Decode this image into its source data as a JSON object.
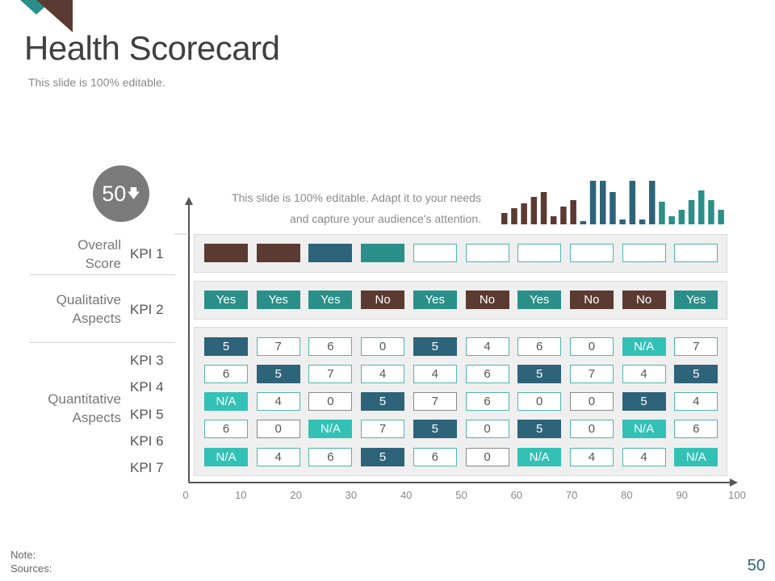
{
  "slide": {
    "title": "Health Scorecard",
    "subtitle": "This slide is 100% editable.",
    "page_number": "50",
    "note_label": "Note:",
    "sources_label": "Sources:"
  },
  "score": {
    "value": "50",
    "arrow_icon": "down-arrow-icon"
  },
  "description": {
    "line1": "This slide is 100% editable. Adapt it to your needs",
    "line2": "and capture your audience's attention."
  },
  "groups": {
    "overall_line1": "Overall",
    "overall_line2": "Score",
    "qualitative_line1": "Qualitative",
    "qualitative_line2": "Aspects",
    "quantitative_line1": "Quantitative",
    "quantitative_line2": "Aspects"
  },
  "kpis": [
    "KPI 1",
    "KPI 2",
    "KPI 3",
    "KPI 4",
    "KPI 5",
    "KPI 6",
    "KPI 7"
  ],
  "axis_ticks": [
    "0",
    "10",
    "20",
    "30",
    "40",
    "50",
    "60",
    "70",
    "80",
    "90",
    "100"
  ],
  "colors": {
    "navy": "#2e6479",
    "teal": "#33c1b6",
    "dark_teal": "#2a8f88",
    "brown": "#5b3a32",
    "accent_title": "#404040"
  },
  "kpi1_row": [
    {
      "style": "brown",
      "text": ""
    },
    {
      "style": "brown",
      "text": ""
    },
    {
      "style": "navy",
      "text": ""
    },
    {
      "style": "dteal",
      "text": ""
    },
    {
      "style": "white",
      "text": ""
    },
    {
      "style": "white",
      "text": ""
    },
    {
      "style": "white",
      "text": ""
    },
    {
      "style": "white",
      "text": ""
    },
    {
      "style": "white",
      "text": ""
    },
    {
      "style": "white",
      "text": ""
    }
  ],
  "kpi2_row": [
    {
      "style": "dteal",
      "text": "Yes"
    },
    {
      "style": "dteal",
      "text": "Yes"
    },
    {
      "style": "dteal",
      "text": "Yes"
    },
    {
      "style": "brown",
      "text": "No"
    },
    {
      "style": "dteal",
      "text": "Yes"
    },
    {
      "style": "brown",
      "text": "No"
    },
    {
      "style": "dteal",
      "text": "Yes"
    },
    {
      "style": "brown",
      "text": "No"
    },
    {
      "style": "brown",
      "text": "No"
    },
    {
      "style": "dteal",
      "text": "Yes"
    }
  ],
  "quant_rows": [
    [
      {
        "style": "navy",
        "text": "5"
      },
      {
        "style": "white",
        "text": "7"
      },
      {
        "style": "white",
        "text": "6"
      },
      {
        "style": "white",
        "text": "0"
      },
      {
        "style": "navy",
        "text": "5"
      },
      {
        "style": "white",
        "text": "4"
      },
      {
        "style": "white",
        "text": "6"
      },
      {
        "style": "white",
        "text": "0"
      },
      {
        "style": "teal",
        "text": "N/A"
      },
      {
        "style": "white",
        "text": "7"
      }
    ],
    [
      {
        "style": "white",
        "text": "6"
      },
      {
        "style": "navy",
        "text": "5"
      },
      {
        "style": "white",
        "text": "7"
      },
      {
        "style": "white",
        "text": "4"
      },
      {
        "style": "white",
        "text": "4"
      },
      {
        "style": "white",
        "text": "6"
      },
      {
        "style": "navy",
        "text": "5"
      },
      {
        "style": "white",
        "text": "7"
      },
      {
        "style": "white",
        "text": "4"
      },
      {
        "style": "navy",
        "text": "5"
      }
    ],
    [
      {
        "style": "teal",
        "text": "N/A"
      },
      {
        "style": "white",
        "text": "4"
      },
      {
        "style": "grey",
        "text": "0"
      },
      {
        "style": "navy",
        "text": "5"
      },
      {
        "style": "grey",
        "text": "7"
      },
      {
        "style": "white",
        "text": "6"
      },
      {
        "style": "white",
        "text": "0"
      },
      {
        "style": "grey",
        "text": "0"
      },
      {
        "style": "navy",
        "text": "5"
      },
      {
        "style": "white",
        "text": "4"
      }
    ],
    [
      {
        "style": "white",
        "text": "6"
      },
      {
        "style": "grey",
        "text": "0"
      },
      {
        "style": "teal",
        "text": "N/A"
      },
      {
        "style": "white",
        "text": "7"
      },
      {
        "style": "navy",
        "text": "5"
      },
      {
        "style": "white",
        "text": "0"
      },
      {
        "style": "navy",
        "text": "5"
      },
      {
        "style": "white",
        "text": "0"
      },
      {
        "style": "teal",
        "text": "N/A"
      },
      {
        "style": "white",
        "text": "6"
      }
    ],
    [
      {
        "style": "teal",
        "text": "N/A"
      },
      {
        "style": "white",
        "text": "4"
      },
      {
        "style": "white",
        "text": "6"
      },
      {
        "style": "navy",
        "text": "5"
      },
      {
        "style": "white",
        "text": "6"
      },
      {
        "style": "grey",
        "text": "0"
      },
      {
        "style": "teal",
        "text": "N/A"
      },
      {
        "style": "white",
        "text": "4"
      },
      {
        "style": "white",
        "text": "4"
      },
      {
        "style": "teal",
        "text": "N/A"
      }
    ]
  ],
  "mini_bars": [
    {
      "value": 14,
      "color": "brown"
    },
    {
      "value": 20,
      "color": "brown"
    },
    {
      "value": 26,
      "color": "brown"
    },
    {
      "value": 34,
      "color": "brown"
    },
    {
      "value": 40,
      "color": "brown"
    },
    {
      "value": 10,
      "color": "brown"
    },
    {
      "value": 22,
      "color": "brown"
    },
    {
      "value": 30,
      "color": "brown"
    },
    {
      "value": 4,
      "color": "navy"
    },
    {
      "value": 54,
      "color": "navy"
    },
    {
      "value": 54,
      "color": "navy"
    },
    {
      "value": 40,
      "color": "navy"
    },
    {
      "value": 6,
      "color": "navy"
    },
    {
      "value": 54,
      "color": "navy"
    },
    {
      "value": 6,
      "color": "navy"
    },
    {
      "value": 54,
      "color": "navy"
    },
    {
      "value": 28,
      "color": "teal"
    },
    {
      "value": 10,
      "color": "teal"
    },
    {
      "value": 18,
      "color": "teal"
    },
    {
      "value": 30,
      "color": "teal"
    },
    {
      "value": 42,
      "color": "teal"
    },
    {
      "value": 30,
      "color": "teal"
    },
    {
      "value": 18,
      "color": "teal"
    }
  ]
}
